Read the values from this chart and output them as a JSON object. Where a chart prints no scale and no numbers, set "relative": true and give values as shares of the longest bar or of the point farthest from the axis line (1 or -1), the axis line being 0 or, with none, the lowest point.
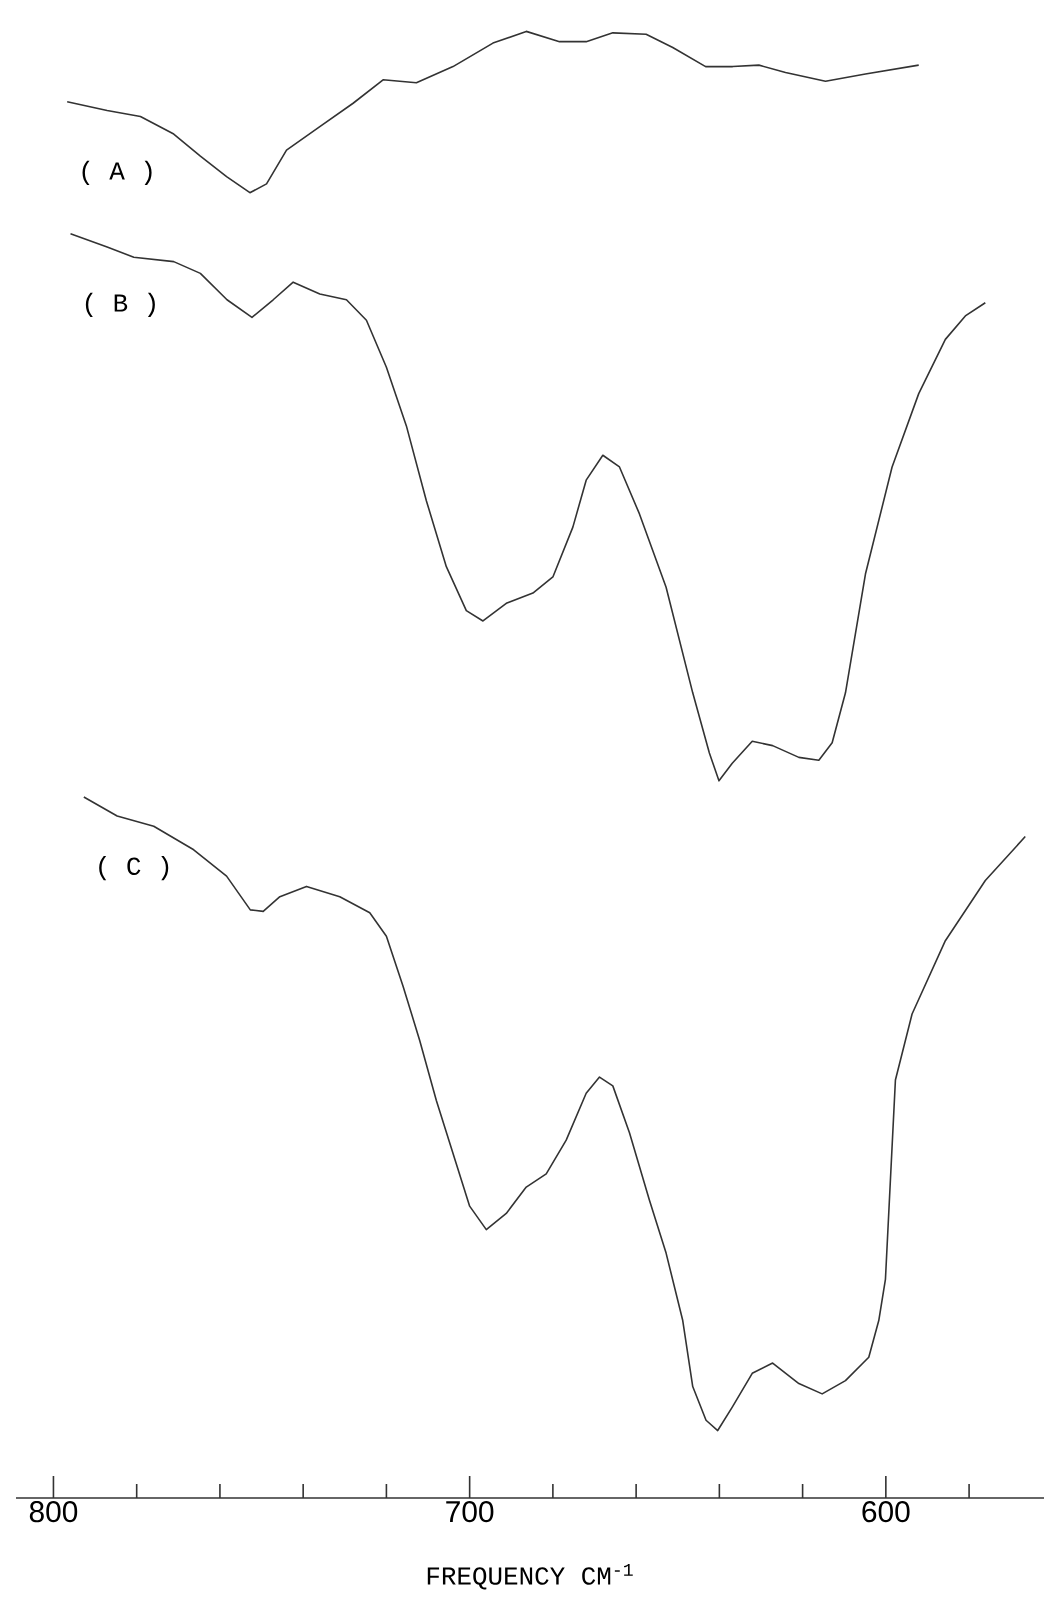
{
  "chart_data": {
    "type": "line",
    "relative": true,
    "xlabel": "FREQUENCY    CM$^{-1}$",
    "xlim": [
      809,
      562
    ],
    "xticks": [
      800,
      {
        "value": 780,
        "label": null
      },
      {
        "value": 760,
        "label": null
      },
      {
        "value": 740,
        "label": null
      },
      {
        "value": 720,
        "label": null
      },
      700,
      {
        "value": 680,
        "label": null
      },
      {
        "value": 660,
        "label": null
      },
      {
        "value": 640,
        "label": null
      },
      {
        "value": 620,
        "label": null
      },
      600,
      {
        "value": 580,
        "label": null
      }
    ],
    "marker": "none",
    "line_style": "solid",
    "series": [
      {
        "name": "( A )",
        "color": "#333333",
        "x": [
          796.7,
          787.1,
          779.1,
          771.1,
          764.7,
          758.4,
          752.8,
          748.8,
          744.0,
          736.0,
          728.0,
          720.8,
          712.8,
          704.0,
          694.4,
          686.4,
          678.4,
          672.0,
          665.6,
          657.6,
          651.2,
          643.3,
          636.8,
          630.5,
          624.1,
          614.5,
          604.9,
          592.1
        ],
        "values": [
          0.952,
          0.946,
          0.942,
          0.93,
          0.915,
          0.901,
          0.89,
          0.896,
          0.919,
          0.935,
          0.951,
          0.967,
          0.965,
          0.976,
          0.992,
          1.0,
          0.993,
          0.993,
          0.999,
          0.998,
          0.989,
          0.976,
          0.976,
          0.977,
          0.972,
          0.966,
          0.971,
          0.977
        ]
      },
      {
        "name": "( B )",
        "color": "#333333",
        "x": [
          795.9,
          787.1,
          780.7,
          771.1,
          764.7,
          758.3,
          752.3,
          747.2,
          742.4,
          736.0,
          729.6,
          724.8,
          720.0,
          715.2,
          710.4,
          705.6,
          700.8,
          696.8,
          691.2,
          684.8,
          680.0,
          675.2,
          672.0,
          668.0,
          664.0,
          659.2,
          652.8,
          646.4,
          642.4,
          640.1,
          636.9,
          632.1,
          627.2,
          620.9,
          616.1,
          612.9,
          609.7,
          604.9,
          598.5,
          592.1,
          585.7,
          580.9,
          576.1
        ],
        "values": [
          0.862,
          0.853,
          0.846,
          0.843,
          0.835,
          0.817,
          0.805,
          0.817,
          0.829,
          0.821,
          0.817,
          0.803,
          0.771,
          0.731,
          0.68,
          0.635,
          0.605,
          0.598,
          0.61,
          0.617,
          0.628,
          0.662,
          0.694,
          0.711,
          0.703,
          0.671,
          0.621,
          0.549,
          0.508,
          0.489,
          0.501,
          0.516,
          0.513,
          0.505,
          0.503,
          0.515,
          0.549,
          0.63,
          0.703,
          0.753,
          0.79,
          0.806,
          0.815
        ]
      },
      {
        "name": "( C )",
        "color": "#333333",
        "x": [
          792.7,
          784.7,
          775.9,
          766.3,
          758.4,
          752.7,
          749.6,
          745.6,
          739.2,
          731.2,
          724.0,
          720.0,
          716.0,
          712.0,
          708.0,
          704.0,
          700.0,
          696.0,
          691.2,
          686.4,
          681.6,
          676.8,
          672.0,
          668.8,
          665.6,
          661.6,
          656.8,
          652.8,
          648.8,
          646.4,
          643.2,
          640.4,
          636.9,
          632.1,
          627.2,
          620.9,
          615.3,
          609.7,
          604.1,
          601.7,
          600.1,
          597.7,
          593.7,
          585.7,
          576.1,
          566.5
        ],
        "values": [
          0.478,
          0.465,
          0.458,
          0.442,
          0.424,
          0.401,
          0.4,
          0.41,
          0.417,
          0.41,
          0.399,
          0.383,
          0.349,
          0.312,
          0.271,
          0.235,
          0.199,
          0.183,
          0.194,
          0.212,
          0.221,
          0.244,
          0.276,
          0.287,
          0.281,
          0.249,
          0.203,
          0.167,
          0.121,
          0.076,
          0.053,
          0.046,
          0.062,
          0.085,
          0.092,
          0.078,
          0.071,
          0.08,
          0.096,
          0.121,
          0.149,
          0.285,
          0.33,
          0.38,
          0.421,
          0.451
        ]
      }
    ]
  }
}
